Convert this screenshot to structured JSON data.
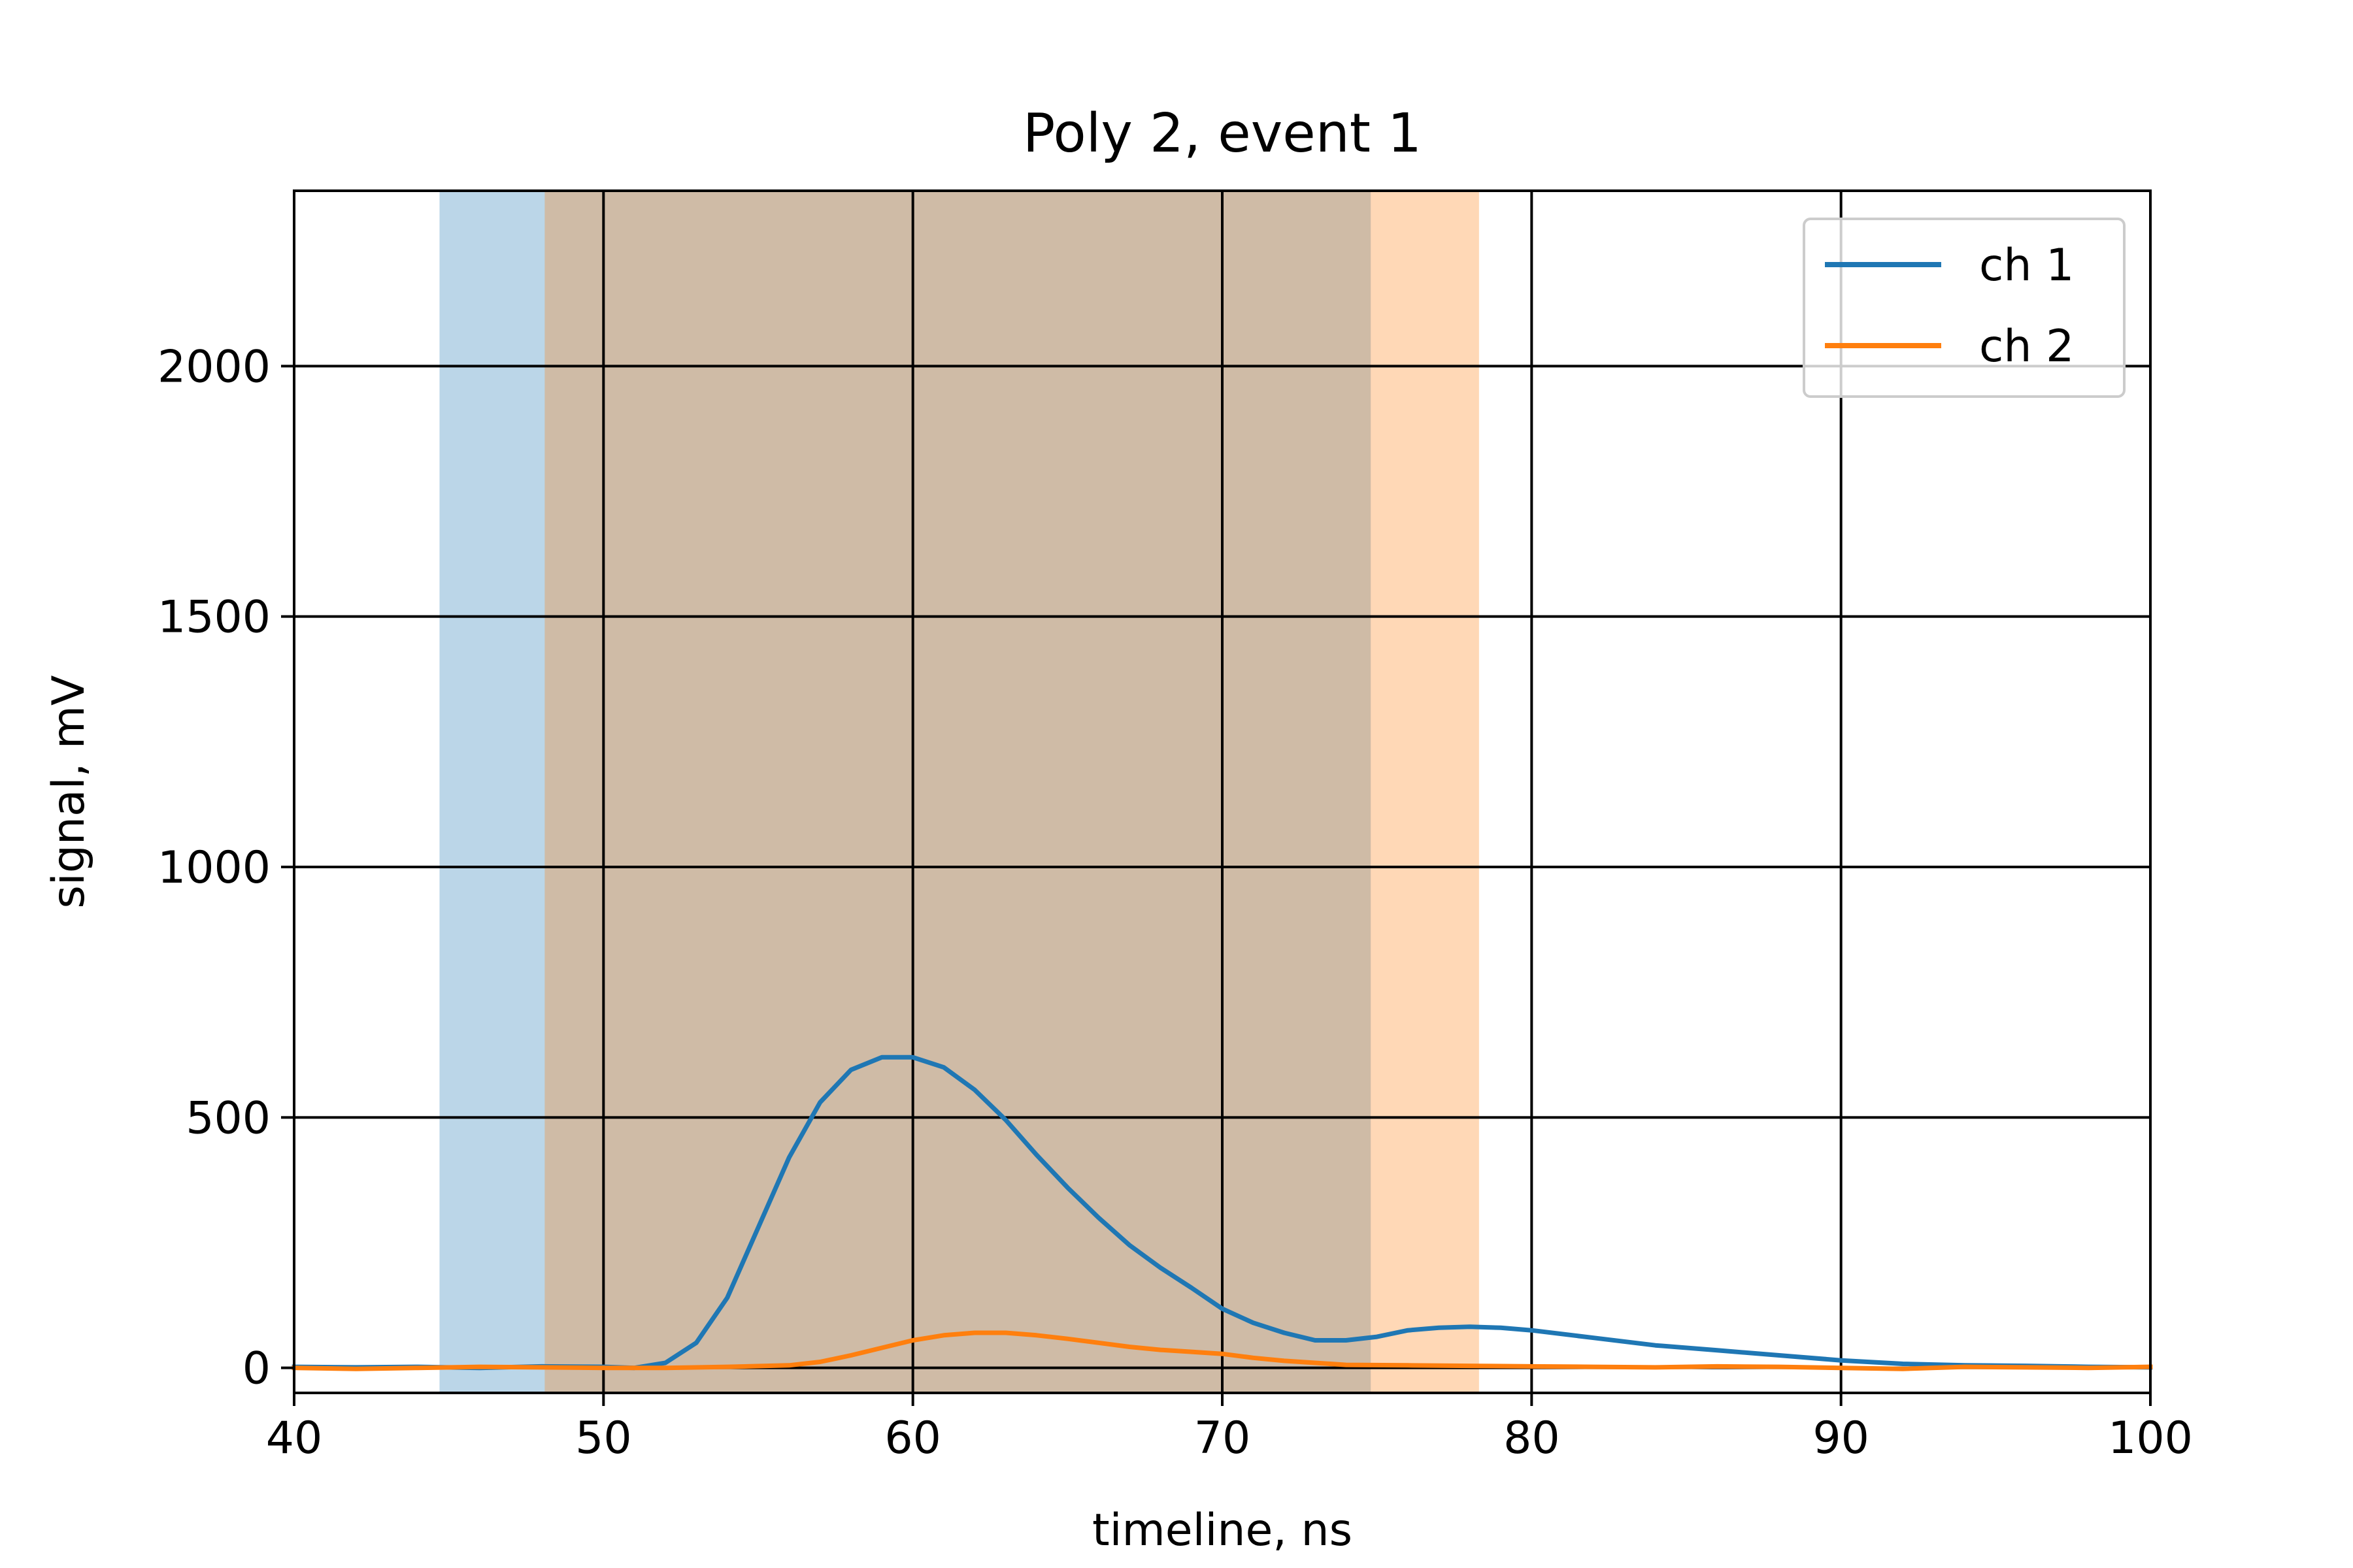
{
  "chart_data": {
    "type": "line",
    "title": "Poly 2, event 1",
    "xlabel": "timeline, ns",
    "ylabel": "signal, mV",
    "xlim": [
      40,
      100
    ],
    "ylim": [
      -50,
      2350
    ],
    "xticks": [
      40,
      50,
      60,
      70,
      80,
      90,
      100
    ],
    "yticks": [
      0,
      500,
      1000,
      1500,
      2000
    ],
    "grid": true,
    "legend_position": "top-right",
    "shaded_regions": [
      {
        "series": "ch 1",
        "x_start": 44.7,
        "x_end": 74.8,
        "color": "#1f77b4",
        "opacity": 0.3
      },
      {
        "series": "ch 2",
        "x_start": 48.1,
        "x_end": 78.3,
        "color": "#ff7f0e",
        "opacity": 0.3
      }
    ],
    "series": [
      {
        "name": "ch 1",
        "color": "#1f77b4",
        "x": [
          40,
          42,
          44,
          46,
          48,
          50,
          51,
          52,
          53,
          54,
          55,
          56,
          57,
          58,
          59,
          60,
          61,
          62,
          63,
          64,
          65,
          66,
          67,
          68,
          69,
          70,
          71,
          72,
          73,
          74,
          75,
          76,
          77,
          78,
          79,
          80,
          82,
          84,
          86,
          88,
          90,
          92,
          94,
          96,
          98,
          100
        ],
        "values": [
          2,
          1,
          2,
          0,
          3,
          2,
          0,
          10,
          50,
          140,
          280,
          420,
          530,
          595,
          620,
          620,
          600,
          555,
          495,
          425,
          360,
          300,
          245,
          200,
          160,
          118,
          90,
          70,
          55,
          55,
          62,
          75,
          80,
          82,
          80,
          75,
          60,
          45,
          35,
          25,
          15,
          8,
          5,
          4,
          2,
          1
        ]
      },
      {
        "name": "ch 2",
        "color": "#ff7f0e",
        "x": [
          40,
          42,
          44,
          46,
          48,
          50,
          52,
          54,
          56,
          57,
          58,
          59,
          60,
          61,
          62,
          63,
          64,
          65,
          66,
          67,
          68,
          69,
          70,
          71,
          72,
          73,
          74,
          76,
          78,
          80,
          82,
          84,
          86,
          88,
          90,
          92,
          94,
          96,
          98,
          100
        ],
        "values": [
          0,
          -2,
          0,
          2,
          1,
          0,
          0,
          2,
          5,
          12,
          25,
          40,
          55,
          65,
          70,
          70,
          65,
          58,
          50,
          42,
          36,
          32,
          28,
          20,
          14,
          10,
          6,
          5,
          4,
          3,
          2,
          1,
          3,
          2,
          0,
          -2,
          2,
          1,
          0,
          2
        ]
      }
    ]
  }
}
